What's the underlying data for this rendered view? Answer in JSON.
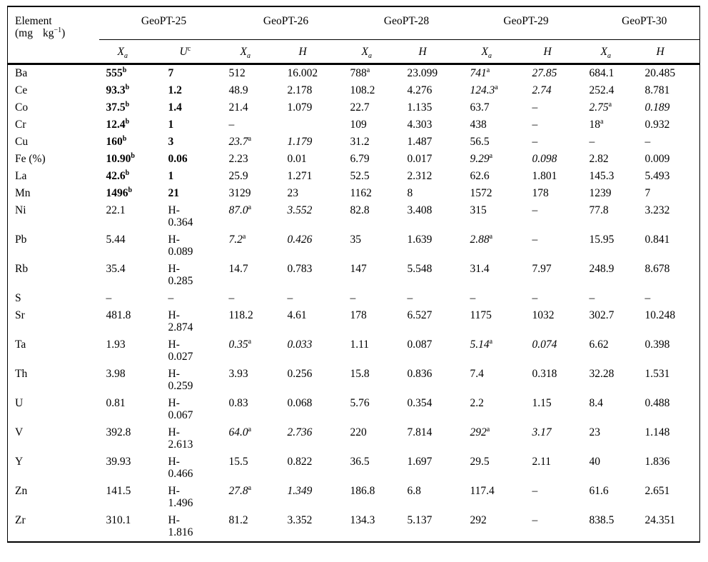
{
  "table": {
    "header": {
      "element": "Element",
      "unit_open": "(mg",
      "unit_kg": "kg",
      "unit_exp": "−1",
      "unit_close": ")"
    },
    "groups": [
      {
        "label": "GeoPT-25",
        "cols": [
          {
            "main": "X",
            "sub": "a"
          },
          {
            "main": "U",
            "sup": "c"
          }
        ]
      },
      {
        "label": "GeoPT-26",
        "cols": [
          {
            "main": "X",
            "sub": "a"
          },
          {
            "main": "H"
          }
        ]
      },
      {
        "label": "GeoPT-28",
        "cols": [
          {
            "main": "X",
            "sub": "a"
          },
          {
            "main": "H"
          }
        ]
      },
      {
        "label": "GeoPT-29",
        "cols": [
          {
            "main": "X",
            "sub": "a"
          },
          {
            "main": "H"
          }
        ]
      },
      {
        "label": "GeoPT-30",
        "cols": [
          {
            "main": "X",
            "sub": "a"
          },
          {
            "main": "H"
          }
        ]
      }
    ],
    "rows": [
      {
        "element": "Ba",
        "cells": [
          {
            "t": "555",
            "sup": "b",
            "b": true
          },
          {
            "t": "7",
            "b": true
          },
          {
            "t": "512"
          },
          {
            "t": "16.002"
          },
          {
            "t": "788",
            "sup": "a"
          },
          {
            "t": "23.099"
          },
          {
            "t": "741",
            "sup": "a",
            "i": true
          },
          {
            "t": "27.85",
            "i": true
          },
          {
            "t": "684.1"
          },
          {
            "t": "20.485"
          }
        ]
      },
      {
        "element": "Ce",
        "cells": [
          {
            "t": "93.3",
            "sup": "b",
            "b": true
          },
          {
            "t": "1.2",
            "b": true
          },
          {
            "t": "48.9"
          },
          {
            "t": "2.178"
          },
          {
            "t": "108.2"
          },
          {
            "t": "4.276"
          },
          {
            "t": "124.3",
            "sup": "a",
            "i": true
          },
          {
            "t": "2.74",
            "i": true
          },
          {
            "t": "252.4"
          },
          {
            "t": "8.781"
          }
        ]
      },
      {
        "element": "Co",
        "cells": [
          {
            "t": "37.5",
            "sup": "b",
            "b": true
          },
          {
            "t": "1.4",
            "b": true
          },
          {
            "t": "21.4"
          },
          {
            "t": "1.079"
          },
          {
            "t": "22.7"
          },
          {
            "t": "1.135"
          },
          {
            "t": "63.7"
          },
          {
            "t": "–"
          },
          {
            "t": "2.75",
            "sup": "a",
            "i": true
          },
          {
            "t": "0.189",
            "i": true
          }
        ]
      },
      {
        "element": "Cr",
        "cells": [
          {
            "t": "12.4",
            "sup": "b",
            "b": true
          },
          {
            "t": "1",
            "b": true
          },
          {
            "t": "–"
          },
          {
            "t": ""
          },
          {
            "t": "109"
          },
          {
            "t": "4.303"
          },
          {
            "t": "438"
          },
          {
            "t": "–"
          },
          {
            "t": "18",
            "sup": "a"
          },
          {
            "t": "0.932"
          }
        ]
      },
      {
        "element": "Cu",
        "cells": [
          {
            "t": "160",
            "sup": "b",
            "b": true
          },
          {
            "t": "3",
            "b": true
          },
          {
            "t": "23.7",
            "sup": "a",
            "i": true
          },
          {
            "t": "1.179",
            "i": true
          },
          {
            "t": "31.2"
          },
          {
            "t": "1.487"
          },
          {
            "t": "56.5"
          },
          {
            "t": "–"
          },
          {
            "t": "–"
          },
          {
            "t": "–"
          }
        ]
      },
      {
        "element": "Fe (%)",
        "cells": [
          {
            "t": "10.90",
            "sup": "b",
            "b": true
          },
          {
            "t": "0.06",
            "b": true
          },
          {
            "t": "2.23"
          },
          {
            "t": "0.01"
          },
          {
            "t": "6.79"
          },
          {
            "t": "0.017"
          },
          {
            "t": "9.29",
            "sup": "a",
            "i": true
          },
          {
            "t": "0.098",
            "i": true
          },
          {
            "t": "2.82"
          },
          {
            "t": "0.009"
          }
        ]
      },
      {
        "element": "La",
        "cells": [
          {
            "t": "42.6",
            "sup": "b",
            "b": true
          },
          {
            "t": "1",
            "b": true
          },
          {
            "t": "25.9"
          },
          {
            "t": "1.271"
          },
          {
            "t": "52.5"
          },
          {
            "t": "2.312"
          },
          {
            "t": "62.6"
          },
          {
            "t": "1.801"
          },
          {
            "t": "145.3"
          },
          {
            "t": "5.493"
          }
        ]
      },
      {
        "element": "Mn",
        "cells": [
          {
            "t": "1496",
            "sup": "b",
            "b": true
          },
          {
            "t": "21",
            "b": true
          },
          {
            "t": "3129"
          },
          {
            "t": "23"
          },
          {
            "t": "1162"
          },
          {
            "t": "8"
          },
          {
            "t": "1572"
          },
          {
            "t": "178"
          },
          {
            "t": "1239"
          },
          {
            "t": "7"
          }
        ]
      },
      {
        "element": "Ni",
        "cells": [
          {
            "t": "22.1"
          },
          {
            "t": "H-\n0.364"
          },
          {
            "t": "87.0",
            "sup": "a",
            "i": true
          },
          {
            "t": "3.552",
            "i": true
          },
          {
            "t": "82.8"
          },
          {
            "t": "3.408"
          },
          {
            "t": "315"
          },
          {
            "t": "–"
          },
          {
            "t": "77.8"
          },
          {
            "t": "3.232"
          }
        ]
      },
      {
        "element": "Pb",
        "cells": [
          {
            "t": "5.44"
          },
          {
            "t": "H-\n0.089"
          },
          {
            "t": "7.2",
            "sup": "a",
            "i": true
          },
          {
            "t": "0.426",
            "i": true
          },
          {
            "t": "35"
          },
          {
            "t": "1.639"
          },
          {
            "t": "2.88",
            "sup": "a",
            "i": true
          },
          {
            "t": "–"
          },
          {
            "t": "15.95"
          },
          {
            "t": "0.841"
          }
        ]
      },
      {
        "element": "Rb",
        "cells": [
          {
            "t": "35.4"
          },
          {
            "t": "H-\n0.285"
          },
          {
            "t": "14.7"
          },
          {
            "t": "0.783"
          },
          {
            "t": "147"
          },
          {
            "t": "5.548"
          },
          {
            "t": "31.4"
          },
          {
            "t": "7.97"
          },
          {
            "t": "248.9"
          },
          {
            "t": "8.678"
          }
        ]
      },
      {
        "element": "S",
        "cells": [
          {
            "t": "–"
          },
          {
            "t": "–"
          },
          {
            "t": "–"
          },
          {
            "t": "–"
          },
          {
            "t": "–"
          },
          {
            "t": "–"
          },
          {
            "t": "–"
          },
          {
            "t": "–"
          },
          {
            "t": "–"
          },
          {
            "t": "–"
          }
        ]
      },
      {
        "element": "Sr",
        "cells": [
          {
            "t": "481.8"
          },
          {
            "t": "H-\n2.874"
          },
          {
            "t": "118.2"
          },
          {
            "t": "4.61"
          },
          {
            "t": "178"
          },
          {
            "t": "6.527"
          },
          {
            "t": "1175"
          },
          {
            "t": "1032"
          },
          {
            "t": "302.7"
          },
          {
            "t": "10.248"
          }
        ]
      },
      {
        "element": "Ta",
        "cells": [
          {
            "t": "1.93"
          },
          {
            "t": "H-\n0.027"
          },
          {
            "t": "0.35",
            "sup": "a",
            "i": true
          },
          {
            "t": "0.033",
            "i": true
          },
          {
            "t": "1.11"
          },
          {
            "t": "0.087"
          },
          {
            "t": "5.14",
            "sup": "a",
            "i": true
          },
          {
            "t": "0.074",
            "i": true
          },
          {
            "t": "6.62"
          },
          {
            "t": "0.398"
          }
        ]
      },
      {
        "element": "Th",
        "cells": [
          {
            "t": "3.98"
          },
          {
            "t": "H-\n0.259"
          },
          {
            "t": "3.93"
          },
          {
            "t": "0.256"
          },
          {
            "t": "15.8"
          },
          {
            "t": "0.836"
          },
          {
            "t": "7.4"
          },
          {
            "t": "0.318"
          },
          {
            "t": "32.28"
          },
          {
            "t": "1.531"
          }
        ]
      },
      {
        "element": "U",
        "cells": [
          {
            "t": "0.81"
          },
          {
            "t": "H-\n0.067"
          },
          {
            "t": "0.83"
          },
          {
            "t": "0.068"
          },
          {
            "t": "5.76"
          },
          {
            "t": "0.354"
          },
          {
            "t": "2.2"
          },
          {
            "t": "1.15"
          },
          {
            "t": "8.4"
          },
          {
            "t": "0.488"
          }
        ]
      },
      {
        "element": "V",
        "cells": [
          {
            "t": "392.8"
          },
          {
            "t": "H-\n2.613"
          },
          {
            "t": "64.0",
            "sup": "a",
            "i": true
          },
          {
            "t": "2.736",
            "i": true
          },
          {
            "t": "220"
          },
          {
            "t": "7.814"
          },
          {
            "t": "292",
            "sup": "a",
            "i": true
          },
          {
            "t": "3.17",
            "i": true
          },
          {
            "t": "23"
          },
          {
            "t": "1.148"
          }
        ]
      },
      {
        "element": "Y",
        "cells": [
          {
            "t": "39.93"
          },
          {
            "t": "H-\n0.466"
          },
          {
            "t": "15.5"
          },
          {
            "t": "0.822"
          },
          {
            "t": "36.5"
          },
          {
            "t": "1.697"
          },
          {
            "t": "29.5"
          },
          {
            "t": "2.11"
          },
          {
            "t": "40"
          },
          {
            "t": "1.836"
          }
        ]
      },
      {
        "element": "Zn",
        "cells": [
          {
            "t": "141.5"
          },
          {
            "t": "H-\n1.496"
          },
          {
            "t": "27.8",
            "sup": "a",
            "i": true
          },
          {
            "t": "1.349",
            "i": true
          },
          {
            "t": "186.8"
          },
          {
            "t": "6.8"
          },
          {
            "t": "117.4"
          },
          {
            "t": "–"
          },
          {
            "t": "61.6"
          },
          {
            "t": "2.651"
          }
        ]
      },
      {
        "element": "Zr",
        "cells": [
          {
            "t": "310.1"
          },
          {
            "t": "H-\n1.816"
          },
          {
            "t": "81.2"
          },
          {
            "t": "3.352"
          },
          {
            "t": "134.3"
          },
          {
            "t": "5.137"
          },
          {
            "t": "292"
          },
          {
            "t": "–"
          },
          {
            "t": "838.5"
          },
          {
            "t": "24.351"
          }
        ]
      }
    ]
  }
}
